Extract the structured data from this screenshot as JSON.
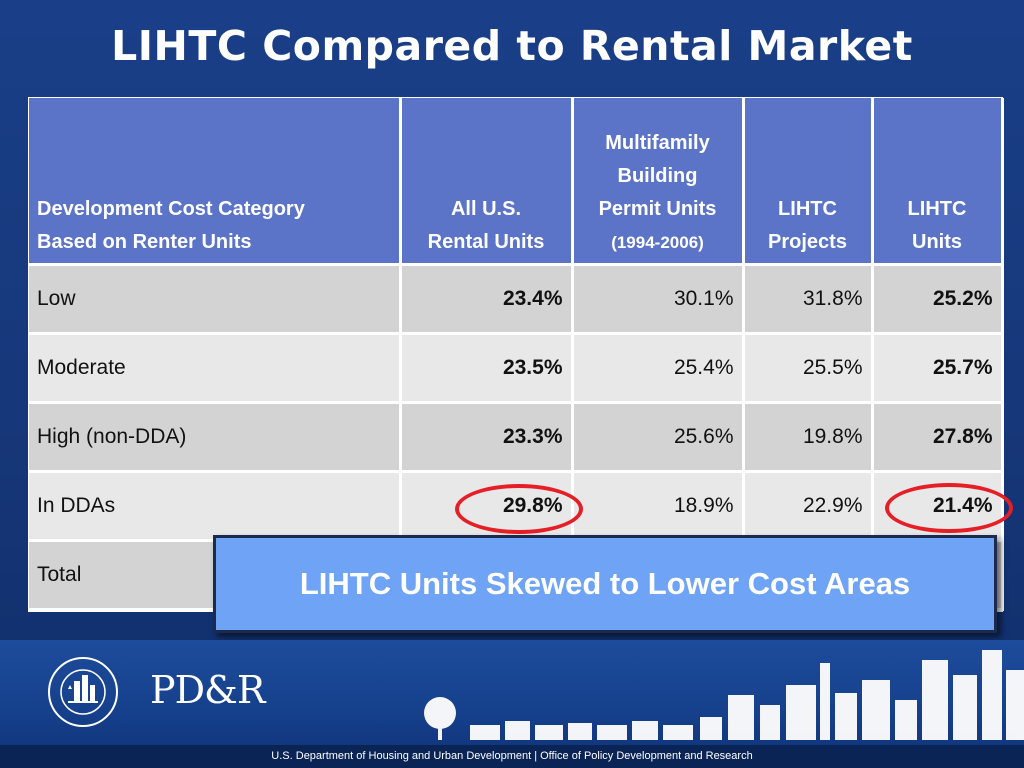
{
  "title": "LIHTC Compared to Rental Market",
  "table": {
    "headers": [
      {
        "line1": "Development Cost Category",
        "line2": "Based on Renter Units"
      },
      {
        "line1": "All U.S.",
        "line2": "Rental Units"
      },
      {
        "line1": "Multifamily",
        "line2": "Building",
        "line3": "Permit Units",
        "line4": "(1994-2006)"
      },
      {
        "line1": "LIHTC",
        "line2": "Projects"
      },
      {
        "line1": "LIHTC",
        "line2": "Units"
      }
    ],
    "rows": [
      {
        "category": "Low",
        "all_us": "23.4%",
        "multifamily": "30.1%",
        "lihtc_projects": "31.8%",
        "lihtc_units": "25.2%"
      },
      {
        "category": "Moderate",
        "all_us": "23.5%",
        "multifamily": "25.4%",
        "lihtc_projects": "25.5%",
        "lihtc_units": "25.7%"
      },
      {
        "category": "High (non-DDA)",
        "all_us": "23.3%",
        "multifamily": "25.6%",
        "lihtc_projects": "19.8%",
        "lihtc_units": "27.8%"
      },
      {
        "category": "In DDAs",
        "all_us": "29.8%",
        "multifamily": "18.9%",
        "lihtc_projects": "22.9%",
        "lihtc_units": "21.4%"
      },
      {
        "category": "Total",
        "all_us": "",
        "multifamily": "",
        "lihtc_projects": "",
        "lihtc_units": ""
      }
    ]
  },
  "callout": "LIHTC Units Skewed to Lower Cost Areas",
  "footer": {
    "agency_line": "U.S. Department of Housing and Urban Development  |  Office of Policy Development and Research",
    "pdr_logo": "PD&R",
    "seal_text": "U.S. DEPARTMENT OF HOUSING AND URBAN DEVELOPMENT"
  },
  "colors": {
    "background": "#1a3f88",
    "header": "#5b74c8",
    "row_dark": "#d3d3d3",
    "row_light": "#e8e8e8",
    "callout": "#6fa3f5",
    "highlight_circle": "#e61e26"
  }
}
